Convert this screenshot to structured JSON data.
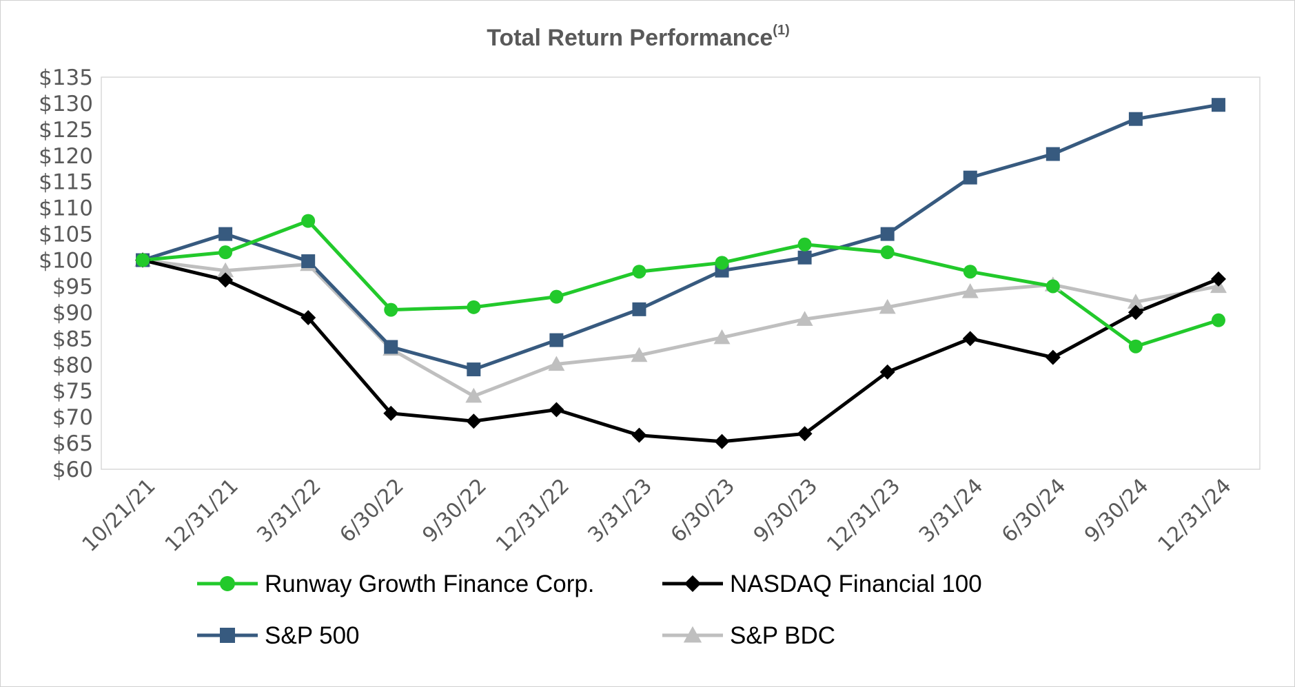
{
  "chart_data": {
    "type": "line",
    "title": "Total Return Performance",
    "title_superscript": "(1)",
    "xlabel": "",
    "ylabel": "",
    "ylim": [
      60,
      135
    ],
    "y_tick_step": 5,
    "y_tick_prefix": "$",
    "y_ticks": [
      "$60",
      "$65",
      "$70",
      "$75",
      "$80",
      "$85",
      "$90",
      "$95",
      "$100",
      "$105",
      "$110",
      "$115",
      "$120",
      "$125",
      "$130",
      "$135"
    ],
    "categories": [
      "10/21/21",
      "12/31/21",
      "3/31/22",
      "6/30/22",
      "9/30/22",
      "12/31/22",
      "3/31/23",
      "6/30/23",
      "9/30/23",
      "12/31/23",
      "3/31/24",
      "6/30/24",
      "9/30/24",
      "12/31/24"
    ],
    "grid": false,
    "legend_position": "bottom",
    "series": [
      {
        "name": "Runway Growth Finance Corp.",
        "color": "#22c92b",
        "marker": "circle",
        "values": [
          100,
          101.5,
          107.5,
          90.5,
          91,
          93,
          97.8,
          99.5,
          103,
          101.5,
          97.8,
          95,
          83.5,
          88.5
        ]
      },
      {
        "name": "NASDAQ Financial 100",
        "color": "#000000",
        "marker": "diamond",
        "values": [
          100,
          96.2,
          89,
          70.7,
          69.2,
          71.4,
          66.5,
          65.3,
          66.8,
          78.6,
          85,
          81.4,
          90,
          96.4
        ]
      },
      {
        "name": "S&P 500",
        "color": "#375a7f",
        "marker": "square",
        "values": [
          100,
          105,
          99.8,
          83.4,
          79.1,
          84.7,
          90.6,
          98,
          100.5,
          105,
          115.8,
          120.3,
          127,
          129.7
        ]
      },
      {
        "name": "S&P BDC",
        "color": "#bfbfbf",
        "marker": "triangle",
        "values": [
          100,
          98,
          99.2,
          83,
          74,
          80.1,
          81.8,
          85.2,
          88.7,
          91,
          94,
          95.3,
          92,
          95
        ]
      }
    ]
  }
}
